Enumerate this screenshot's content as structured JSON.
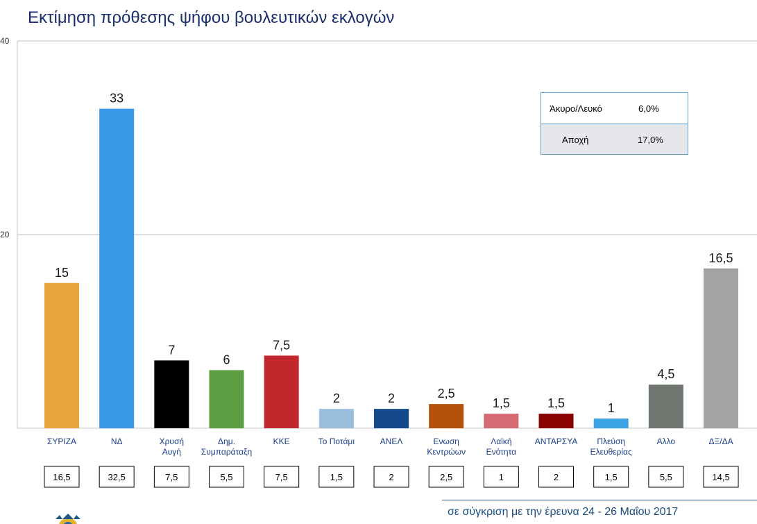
{
  "title": "Εκτίμηση πρόθεσης ψήφου βουλευτικών εκλογών",
  "chart_data": {
    "type": "bar",
    "title": "Εκτίμηση πρόθεσης ψήφου βουλευτικών εκλογών",
    "ylim": [
      0,
      40
    ],
    "yticks": [
      "20",
      "40"
    ],
    "grid": true,
    "categories": [
      [
        "ΣΥΡΙΖΑ"
      ],
      [
        "ΝΔ"
      ],
      [
        "Χρυσή",
        "Αυγή"
      ],
      [
        "Δημ.",
        "Συμπαράταξη"
      ],
      [
        "ΚΚΕ"
      ],
      [
        "Το Ποτάμι"
      ],
      [
        "ΑΝΕΛ"
      ],
      [
        "Ενωση",
        "Κεντρώων"
      ],
      [
        "Λαϊκή",
        "Ενότητα"
      ],
      [
        "ΑΝΤΑΡΣΥΑ"
      ],
      [
        "Πλεύση",
        "Ελευθερίας"
      ],
      [
        "Αλλο"
      ],
      [
        "ΔΞ/ΔΑ"
      ]
    ],
    "values": [
      15,
      33,
      7,
      6,
      7.5,
      2,
      2,
      2.5,
      1.5,
      1.5,
      1,
      4.5,
      16.5
    ],
    "value_labels": [
      "15",
      "33",
      "7",
      "6",
      "7,5",
      "2",
      "2",
      "2,5",
      "1,5",
      "1,5",
      "1",
      "4,5",
      "16,5"
    ],
    "colors": [
      "#e8a33a",
      "#3a98e8",
      "#000000",
      "#5e9e43",
      "#c1272d",
      "#9bbede",
      "#154a8a",
      "#b5520a",
      "#d46a73",
      "#8b0000",
      "#3da4e4",
      "#6f7670",
      "#a3a3a3"
    ],
    "previous_values": [
      "16,5",
      "32,5",
      "7,5",
      "5,5",
      "7,5",
      "1,5",
      "2",
      "2,5",
      "1",
      "2",
      "1,5",
      "5,5",
      "14,5"
    ]
  },
  "legend_table": [
    {
      "label": "Άκυρο/Λευκό",
      "value": "6,0%"
    },
    {
      "label": "Αποχή",
      "value": "17,0%"
    }
  ],
  "footer": "σε σύγκριση με την έρευνα 24 - 26 Μαΐου 2017"
}
